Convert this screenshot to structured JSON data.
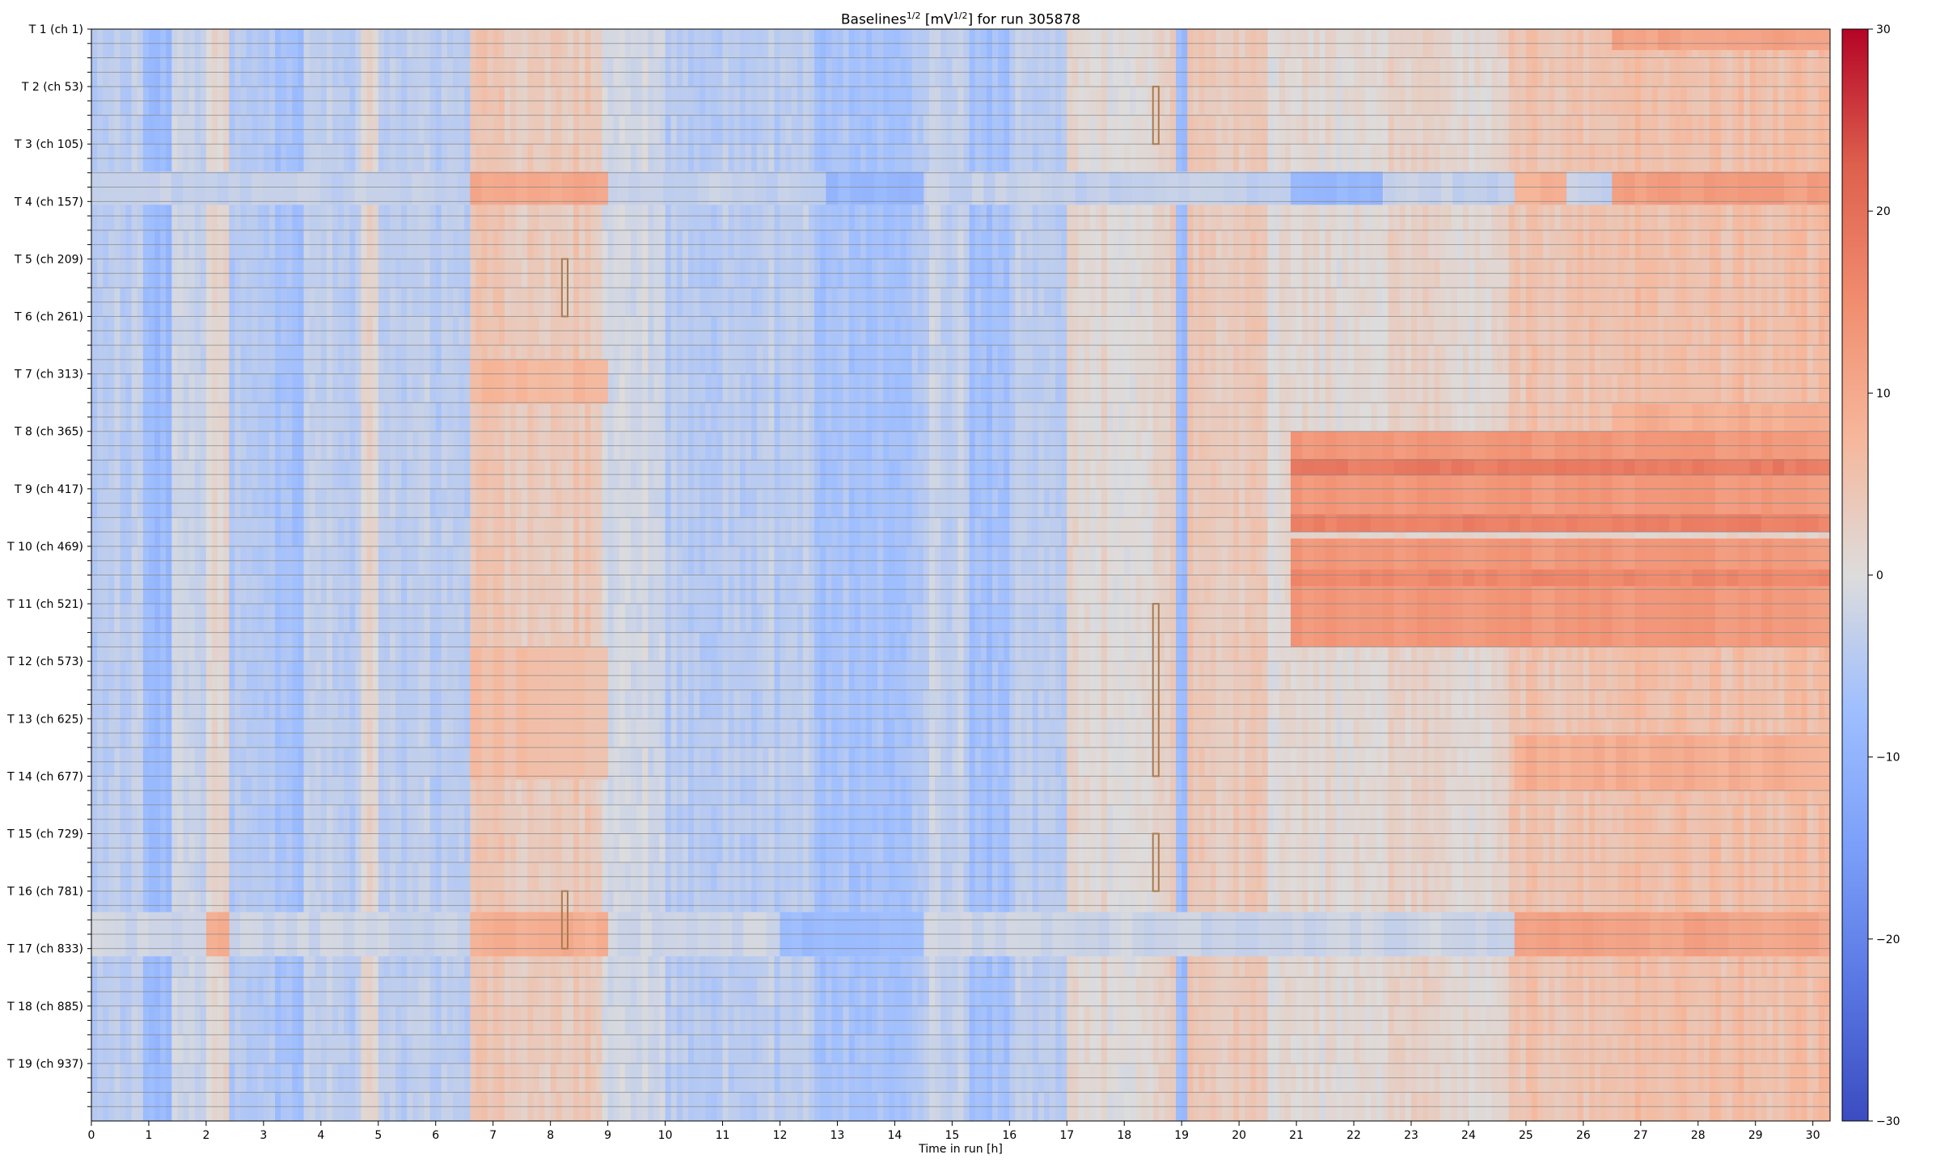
{
  "chart_data": {
    "type": "heatmap",
    "title": {
      "prefix": "Baselines",
      "sup1": "1/2",
      "middle": " [mV",
      "sup2": "1/2",
      "suffix": "] for run 305878"
    },
    "xlabel": "Time in run [h]",
    "ylabel": "",
    "xlim": [
      0,
      30.3
    ],
    "n_channels": 988,
    "x_ticks": [
      0,
      1,
      2,
      3,
      4,
      5,
      6,
      7,
      8,
      9,
      10,
      11,
      12,
      13,
      14,
      15,
      16,
      17,
      18,
      19,
      20,
      21,
      22,
      23,
      24,
      25,
      26,
      27,
      28,
      29,
      30
    ],
    "y_tick_labels": [
      {
        "label": "T 1 (ch 1)",
        "channel": 1
      },
      {
        "label": "T 2 (ch 53)",
        "channel": 53
      },
      {
        "label": "T 3 (ch 105)",
        "channel": 105
      },
      {
        "label": "T 4 (ch 157)",
        "channel": 157
      },
      {
        "label": "T 5 (ch 209)",
        "channel": 209
      },
      {
        "label": "T 6 (ch 261)",
        "channel": 261
      },
      {
        "label": "T 7 (ch 313)",
        "channel": 313
      },
      {
        "label": "T 8 (ch 365)",
        "channel": 365
      },
      {
        "label": "T 9 (ch 417)",
        "channel": 417
      },
      {
        "label": "T 10 (ch 469)",
        "channel": 469
      },
      {
        "label": "T 11 (ch 521)",
        "channel": 521
      },
      {
        "label": "T 12 (ch 573)",
        "channel": 573
      },
      {
        "label": "T 13 (ch 625)",
        "channel": 625
      },
      {
        "label": "T 14 (ch 677)",
        "channel": 677
      },
      {
        "label": "T 15 (ch 729)",
        "channel": 729
      },
      {
        "label": "T 16 (ch 781)",
        "channel": 781
      },
      {
        "label": "T 17 (ch 833)",
        "channel": 833
      },
      {
        "label": "T 18 (ch 885)",
        "channel": 885
      },
      {
        "label": "T 19 (ch 937)",
        "channel": 937
      }
    ],
    "colorbar": {
      "colormap": "coolwarm",
      "range": [
        -30,
        30
      ],
      "ticks": [
        -30,
        -20,
        -10,
        0,
        10,
        20,
        30
      ],
      "tick_labels": [
        "−30",
        "−20",
        "−10",
        "0",
        "10",
        "20",
        "30"
      ]
    },
    "time_profile": [
      {
        "from": 0.0,
        "to": 0.9,
        "value": -4
      },
      {
        "from": 0.9,
        "to": 1.4,
        "value": -8
      },
      {
        "from": 1.4,
        "to": 2.0,
        "value": -3
      },
      {
        "from": 2.0,
        "to": 2.4,
        "value": 2
      },
      {
        "from": 2.4,
        "to": 3.2,
        "value": -5
      },
      {
        "from": 3.2,
        "to": 3.7,
        "value": -7
      },
      {
        "from": 3.7,
        "to": 4.7,
        "value": -4
      },
      {
        "from": 4.7,
        "to": 5.0,
        "value": 2
      },
      {
        "from": 5.0,
        "to": 6.6,
        "value": -4
      },
      {
        "from": 6.6,
        "to": 8.9,
        "value": 4
      },
      {
        "from": 8.9,
        "to": 10.0,
        "value": -1
      },
      {
        "from": 10.0,
        "to": 12.6,
        "value": -4
      },
      {
        "from": 12.6,
        "to": 14.5,
        "value": -6
      },
      {
        "from": 14.5,
        "to": 15.3,
        "value": -3
      },
      {
        "from": 15.3,
        "to": 16.0,
        "value": -7
      },
      {
        "from": 16.0,
        "to": 17.0,
        "value": -4
      },
      {
        "from": 17.0,
        "to": 18.5,
        "value": 1
      },
      {
        "from": 18.5,
        "to": 18.9,
        "value": 3
      },
      {
        "from": 18.9,
        "to": 19.1,
        "value": -8
      },
      {
        "from": 19.1,
        "to": 20.5,
        "value": 4
      },
      {
        "from": 20.5,
        "to": 22.5,
        "value": 1
      },
      {
        "from": 22.5,
        "to": 23.5,
        "value": 2
      },
      {
        "from": 23.5,
        "to": 24.7,
        "value": 1
      },
      {
        "from": 24.7,
        "to": 26.5,
        "value": 5
      },
      {
        "from": 26.5,
        "to": 30.3,
        "value": 6
      }
    ],
    "regions": [
      {
        "ch_from": 1,
        "ch_to": 20,
        "t_from": 26.5,
        "t_to": 30.3,
        "value": 11
      },
      {
        "ch_from": 130,
        "ch_to": 160,
        "t_from": 0.0,
        "t_to": 30.3,
        "value": -3
      },
      {
        "ch_from": 130,
        "ch_to": 160,
        "t_from": 6.6,
        "t_to": 9.0,
        "value": 10
      },
      {
        "ch_from": 130,
        "ch_to": 160,
        "t_from": 24.8,
        "t_to": 25.7,
        "value": 9
      },
      {
        "ch_from": 130,
        "ch_to": 160,
        "t_from": 26.5,
        "t_to": 30.3,
        "value": 12
      },
      {
        "ch_from": 130,
        "ch_to": 160,
        "t_from": 12.8,
        "t_to": 14.5,
        "value": -9
      },
      {
        "ch_from": 130,
        "ch_to": 160,
        "t_from": 20.9,
        "t_to": 22.5,
        "value": -9
      },
      {
        "ch_from": 300,
        "ch_to": 340,
        "t_from": 6.6,
        "t_to": 9.0,
        "value": 7
      },
      {
        "ch_from": 340,
        "ch_to": 365,
        "t_from": 26.5,
        "t_to": 30.3,
        "value": 9
      },
      {
        "ch_from": 365,
        "ch_to": 560,
        "t_from": 20.9,
        "t_to": 30.3,
        "value": 13
      },
      {
        "ch_from": 390,
        "ch_to": 405,
        "t_from": 20.9,
        "t_to": 30.3,
        "value": 18
      },
      {
        "ch_from": 440,
        "ch_to": 456,
        "t_from": 20.9,
        "t_to": 30.3,
        "value": 17
      },
      {
        "ch_from": 456,
        "ch_to": 462,
        "t_from": 20.9,
        "t_to": 30.3,
        "value": 2
      },
      {
        "ch_from": 490,
        "ch_to": 505,
        "t_from": 20.9,
        "t_to": 30.3,
        "value": 16
      },
      {
        "ch_from": 560,
        "ch_to": 680,
        "t_from": 6.6,
        "t_to": 9.0,
        "value": 6
      },
      {
        "ch_from": 640,
        "ch_to": 690,
        "t_from": 24.8,
        "t_to": 30.3,
        "value": 9
      },
      {
        "ch_from": 800,
        "ch_to": 840,
        "t_from": 0.0,
        "t_to": 30.3,
        "value": -2
      },
      {
        "ch_from": 800,
        "ch_to": 840,
        "t_from": 2.0,
        "t_to": 2.4,
        "value": 10
      },
      {
        "ch_from": 800,
        "ch_to": 840,
        "t_from": 6.6,
        "t_to": 9.0,
        "value": 9
      },
      {
        "ch_from": 800,
        "ch_to": 840,
        "t_from": 24.8,
        "t_to": 30.3,
        "value": 11
      },
      {
        "ch_from": 800,
        "ch_to": 840,
        "t_from": 12.0,
        "t_to": 14.5,
        "value": -8
      }
    ],
    "markers": [
      {
        "t_from": 18.5,
        "t_to": 18.6,
        "ch_from": 53,
        "ch_to": 105
      },
      {
        "t_from": 8.2,
        "t_to": 8.3,
        "ch_from": 209,
        "ch_to": 261
      },
      {
        "t_from": 18.5,
        "t_to": 18.6,
        "ch_from": 521,
        "ch_to": 677
      },
      {
        "t_from": 18.5,
        "t_to": 18.6,
        "ch_from": 729,
        "ch_to": 781
      },
      {
        "t_from": 8.2,
        "t_to": 8.3,
        "ch_from": 781,
        "ch_to": 833
      }
    ],
    "marker_color": "#a97b4f",
    "gridline_color": "#888888"
  }
}
